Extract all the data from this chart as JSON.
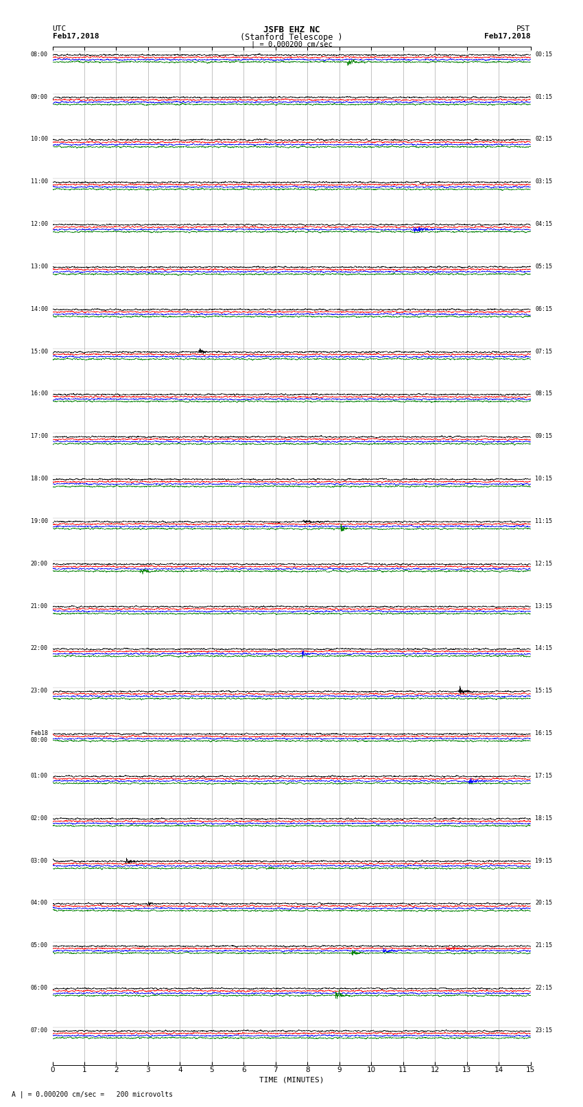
{
  "title_line1": "JSFB EHZ NC",
  "title_line2": "(Stanford Telescope )",
  "scale_text": "| = 0.000200 cm/sec",
  "bottom_text": "A | = 0.000200 cm/sec =   200 microvolts",
  "utc_label": "UTC",
  "pst_label": "PST",
  "date_left": "Feb17,2018",
  "date_right": "Feb17,2018",
  "xlabel": "TIME (MINUTES)",
  "left_times_utc": [
    "08:00",
    "09:00",
    "10:00",
    "11:00",
    "12:00",
    "13:00",
    "14:00",
    "15:00",
    "16:00",
    "17:00",
    "18:00",
    "19:00",
    "20:00",
    "21:00",
    "22:00",
    "23:00",
    "Feb18\n00:00",
    "01:00",
    "02:00",
    "03:00",
    "04:00",
    "05:00",
    "06:00",
    "07:00"
  ],
  "right_times_pst": [
    "00:15",
    "01:15",
    "02:15",
    "03:15",
    "04:15",
    "05:15",
    "06:15",
    "07:15",
    "08:15",
    "09:15",
    "10:15",
    "11:15",
    "12:15",
    "13:15",
    "14:15",
    "15:15",
    "16:15",
    "17:15",
    "18:15",
    "19:15",
    "20:15",
    "21:15",
    "22:15",
    "23:15"
  ],
  "n_rows": 24,
  "traces_per_row": 4,
  "colors": [
    "black",
    "red",
    "blue",
    "green"
  ],
  "x_ticks": [
    0,
    1,
    2,
    3,
    4,
    5,
    6,
    7,
    8,
    9,
    10,
    11,
    12,
    13,
    14,
    15
  ],
  "x_lim": [
    0,
    15
  ],
  "background_color": "white",
  "grid_color": "#aaaaaa",
  "noise_amplitude": 0.032,
  "seed": 12345,
  "linewidth": 0.45,
  "n_points": 3000
}
